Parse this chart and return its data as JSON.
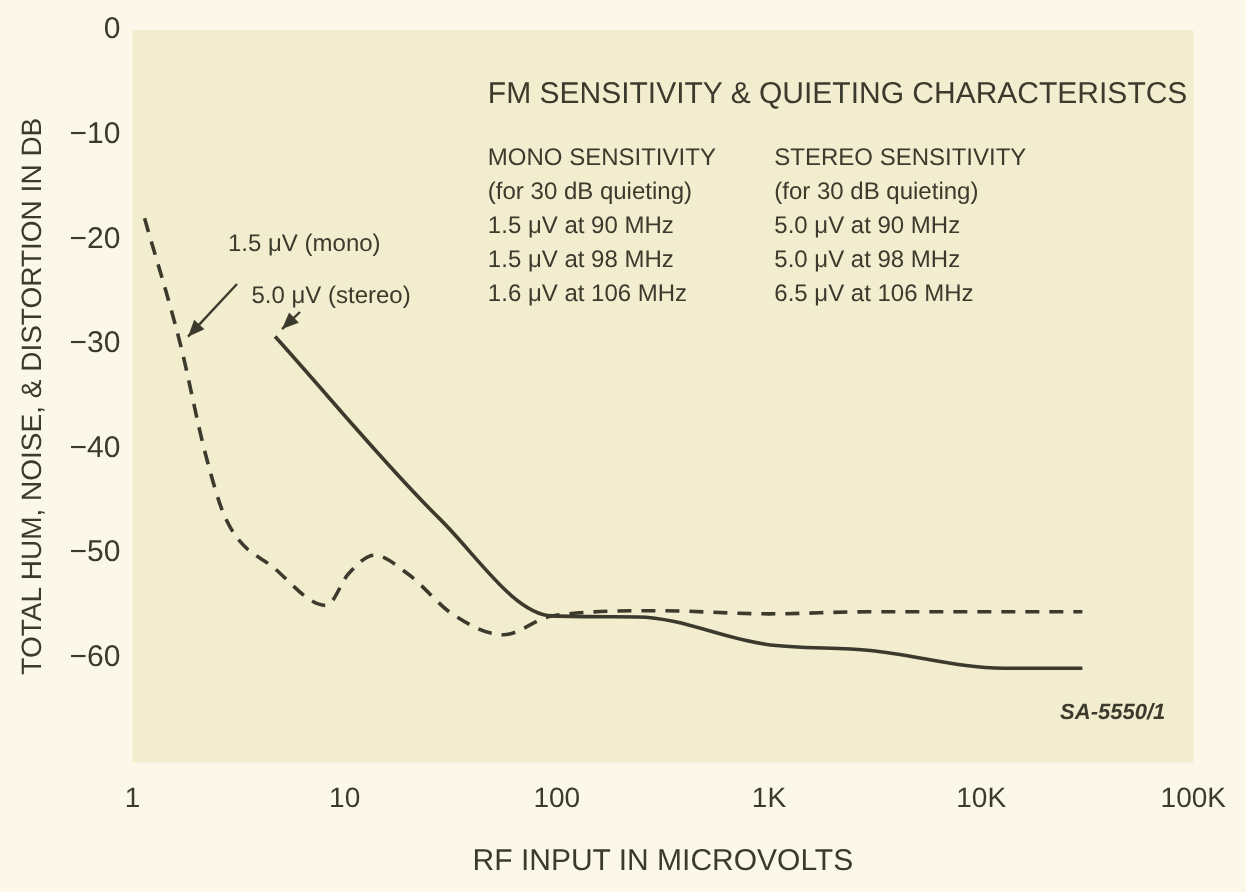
{
  "chart_data": {
    "type": "line",
    "title": "FM SENSITIVITY & QUIETING CHARACTERISTCS",
    "xlabel": "RF INPUT IN MICROVOLTS",
    "ylabel": "TOTAL HUM, NOISE, & DISTORTION IN DB",
    "log": "x",
    "xlim": [
      1,
      100000
    ],
    "xticks": [
      1,
      10,
      100,
      {
        "value": 1000,
        "label": "1K"
      },
      {
        "value": 10000,
        "label": "10K"
      },
      {
        "value": 100000,
        "label": "100K"
      }
    ],
    "ylim": [
      -70,
      0
    ],
    "yticks": [
      0,
      -10,
      -20,
      -30,
      -40,
      -50,
      -60
    ],
    "grid": false,
    "legend": false,
    "series": [
      {
        "color": "#3b3a2c",
        "line_style": "dashed",
        "x": [
          1.14,
          1.68,
          2.2,
          2.75,
          4.7,
          8.2,
          10.4,
          13.8,
          19.9,
          32.6,
          56,
          95,
          300,
          1000,
          3000,
          30000
        ],
        "values": [
          -18,
          -30,
          -40.4,
          -46.7,
          -51.5,
          -55,
          -52,
          -50.2,
          -52,
          -55.9,
          -57.8,
          -56,
          -55.5,
          -55.8,
          -55.6,
          -55.6
        ]
      },
      {
        "color": "#3b3a2c",
        "line_style": "solid",
        "x": [
          4.7,
          28,
          95,
          240,
          960,
          3000,
          12800,
          30000
        ],
        "values": [
          -29.3,
          -46.7,
          -56,
          -56.1,
          -58.7,
          -59.3,
          -61,
          -61
        ]
      }
    ],
    "annotations": [
      "MONO SENSITIVITY\n(for 30 dB quieting)\n1.5 μV at 90 MHz\n1.5 μV at 98 MHz\n1.6 μV at 106 MHz",
      "STEREO SENSITIVITY\n(for 30 dB quieting)\n5.0 μV at 90 MHz\n5.0 μV at 98 MHz\n6.5 μV at 106 MHz",
      "SA-5550/1",
      {
        "text": "1.5 μV (mono)",
        "x": 1.68,
        "y": -30
      },
      {
        "text": "5.0 μV (stereo)",
        "x": 4.7,
        "y": -29.3
      }
    ]
  }
}
